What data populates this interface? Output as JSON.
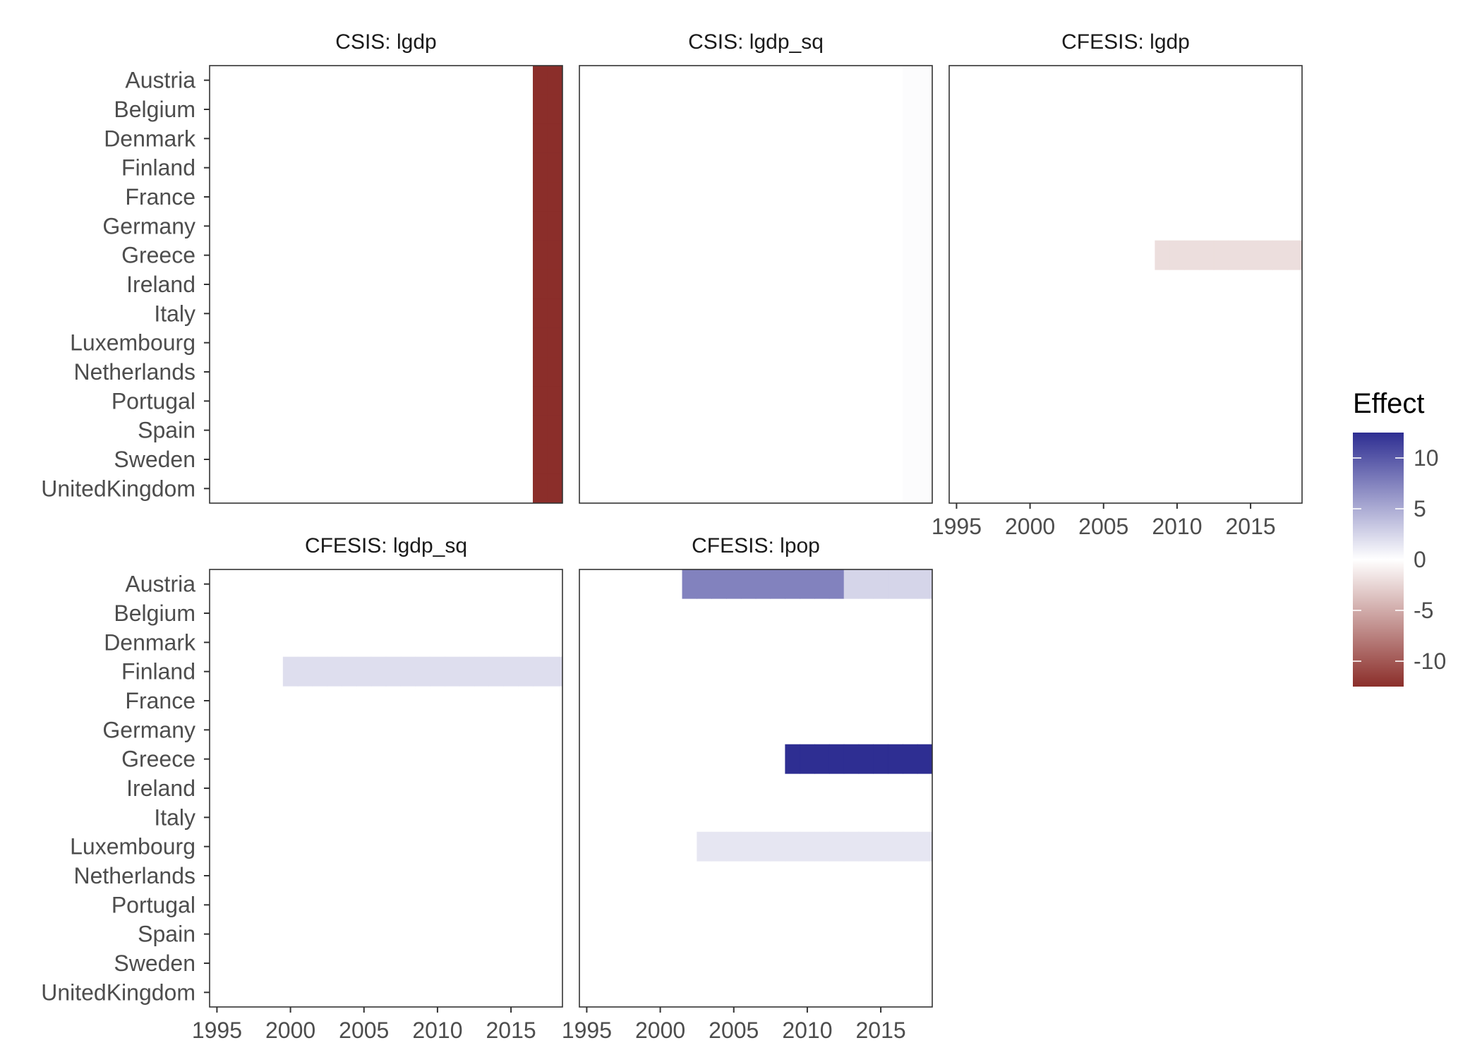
{
  "chart_data": {
    "type": "heatmap",
    "legend": {
      "title": "Effect",
      "ticks": [
        10,
        5,
        0,
        -5,
        -10
      ],
      "range": [
        -12.5,
        12.5
      ],
      "colors": {
        "low": "#8b2e2a",
        "mid": "#ffffff",
        "high": "#2e2e92"
      },
      "placement": "right"
    },
    "countries": [
      "Austria",
      "Belgium",
      "Denmark",
      "Finland",
      "France",
      "Germany",
      "Greece",
      "Ireland",
      "Italy",
      "Luxembourg",
      "Netherlands",
      "Portugal",
      "Spain",
      "Sweden",
      "UnitedKingdom"
    ],
    "x_ticks": [
      1995,
      2000,
      2005,
      2010,
      2015
    ],
    "x_range": [
      1994.5,
      2018.5
    ],
    "panels": [
      {
        "title": "CSIS: lgdp",
        "segments": [
          {
            "country": "Austria",
            "start": 2017,
            "end": 2018,
            "value": -12.5
          },
          {
            "country": "Belgium",
            "start": 2017,
            "end": 2018,
            "value": -12.5
          },
          {
            "country": "Denmark",
            "start": 2017,
            "end": 2018,
            "value": -12.5
          },
          {
            "country": "Finland",
            "start": 2017,
            "end": 2018,
            "value": -12.5
          },
          {
            "country": "France",
            "start": 2017,
            "end": 2018,
            "value": -12.5
          },
          {
            "country": "Germany",
            "start": 2017,
            "end": 2018,
            "value": -12.5
          },
          {
            "country": "Greece",
            "start": 2017,
            "end": 2018,
            "value": -12.5
          },
          {
            "country": "Ireland",
            "start": 2017,
            "end": 2018,
            "value": -12.5
          },
          {
            "country": "Italy",
            "start": 2017,
            "end": 2018,
            "value": -12.5
          },
          {
            "country": "Luxembourg",
            "start": 2017,
            "end": 2018,
            "value": -12.5
          },
          {
            "country": "Netherlands",
            "start": 2017,
            "end": 2018,
            "value": -12.5
          },
          {
            "country": "Portugal",
            "start": 2017,
            "end": 2018,
            "value": -12.5
          },
          {
            "country": "Spain",
            "start": 2017,
            "end": 2018,
            "value": -12.5
          },
          {
            "country": "Sweden",
            "start": 2017,
            "end": 2018,
            "value": -12.5
          },
          {
            "country": "UnitedKingdom",
            "start": 2017,
            "end": 2018,
            "value": -12.5
          }
        ]
      },
      {
        "title": "CSIS: lgdp_sq",
        "segments": [
          {
            "country": "Austria",
            "start": 2017,
            "end": 2018,
            "value": 0.2
          },
          {
            "country": "Belgium",
            "start": 2017,
            "end": 2018,
            "value": 0.2
          },
          {
            "country": "Denmark",
            "start": 2017,
            "end": 2018,
            "value": 0.2
          },
          {
            "country": "Finland",
            "start": 2017,
            "end": 2018,
            "value": 0.2
          },
          {
            "country": "France",
            "start": 2017,
            "end": 2018,
            "value": 0.2
          },
          {
            "country": "Germany",
            "start": 2017,
            "end": 2018,
            "value": 0.2
          },
          {
            "country": "Greece",
            "start": 2017,
            "end": 2018,
            "value": 0.2
          },
          {
            "country": "Ireland",
            "start": 2017,
            "end": 2018,
            "value": 0.2
          },
          {
            "country": "Italy",
            "start": 2017,
            "end": 2018,
            "value": 0.2
          },
          {
            "country": "Luxembourg",
            "start": 2017,
            "end": 2018,
            "value": 0.2
          },
          {
            "country": "Netherlands",
            "start": 2017,
            "end": 2018,
            "value": 0.2
          },
          {
            "country": "Portugal",
            "start": 2017,
            "end": 2018,
            "value": 0.2
          },
          {
            "country": "Spain",
            "start": 2017,
            "end": 2018,
            "value": 0.2
          },
          {
            "country": "Sweden",
            "start": 2017,
            "end": 2018,
            "value": 0.2
          },
          {
            "country": "UnitedKingdom",
            "start": 2017,
            "end": 2018,
            "value": 0.2
          }
        ]
      },
      {
        "title": "CFESIS: lgdp",
        "segments": [
          {
            "country": "Greece",
            "start": 2009,
            "end": 2018,
            "value": -2
          }
        ]
      },
      {
        "title": "CFESIS: lgdp_sq",
        "segments": [
          {
            "country": "Finland",
            "start": 2000,
            "end": 2018,
            "value": 2
          }
        ]
      },
      {
        "title": "CFESIS: lpop",
        "segments": [
          {
            "country": "Austria",
            "start": 2002,
            "end": 2012,
            "value": 7.5
          },
          {
            "country": "Austria",
            "start": 2013,
            "end": 2018,
            "value": 2.5
          },
          {
            "country": "Greece",
            "start": 2009,
            "end": 2018,
            "value": 12.5
          },
          {
            "country": "Luxembourg",
            "start": 2003,
            "end": 2018,
            "value": 1.5
          }
        ]
      }
    ]
  }
}
